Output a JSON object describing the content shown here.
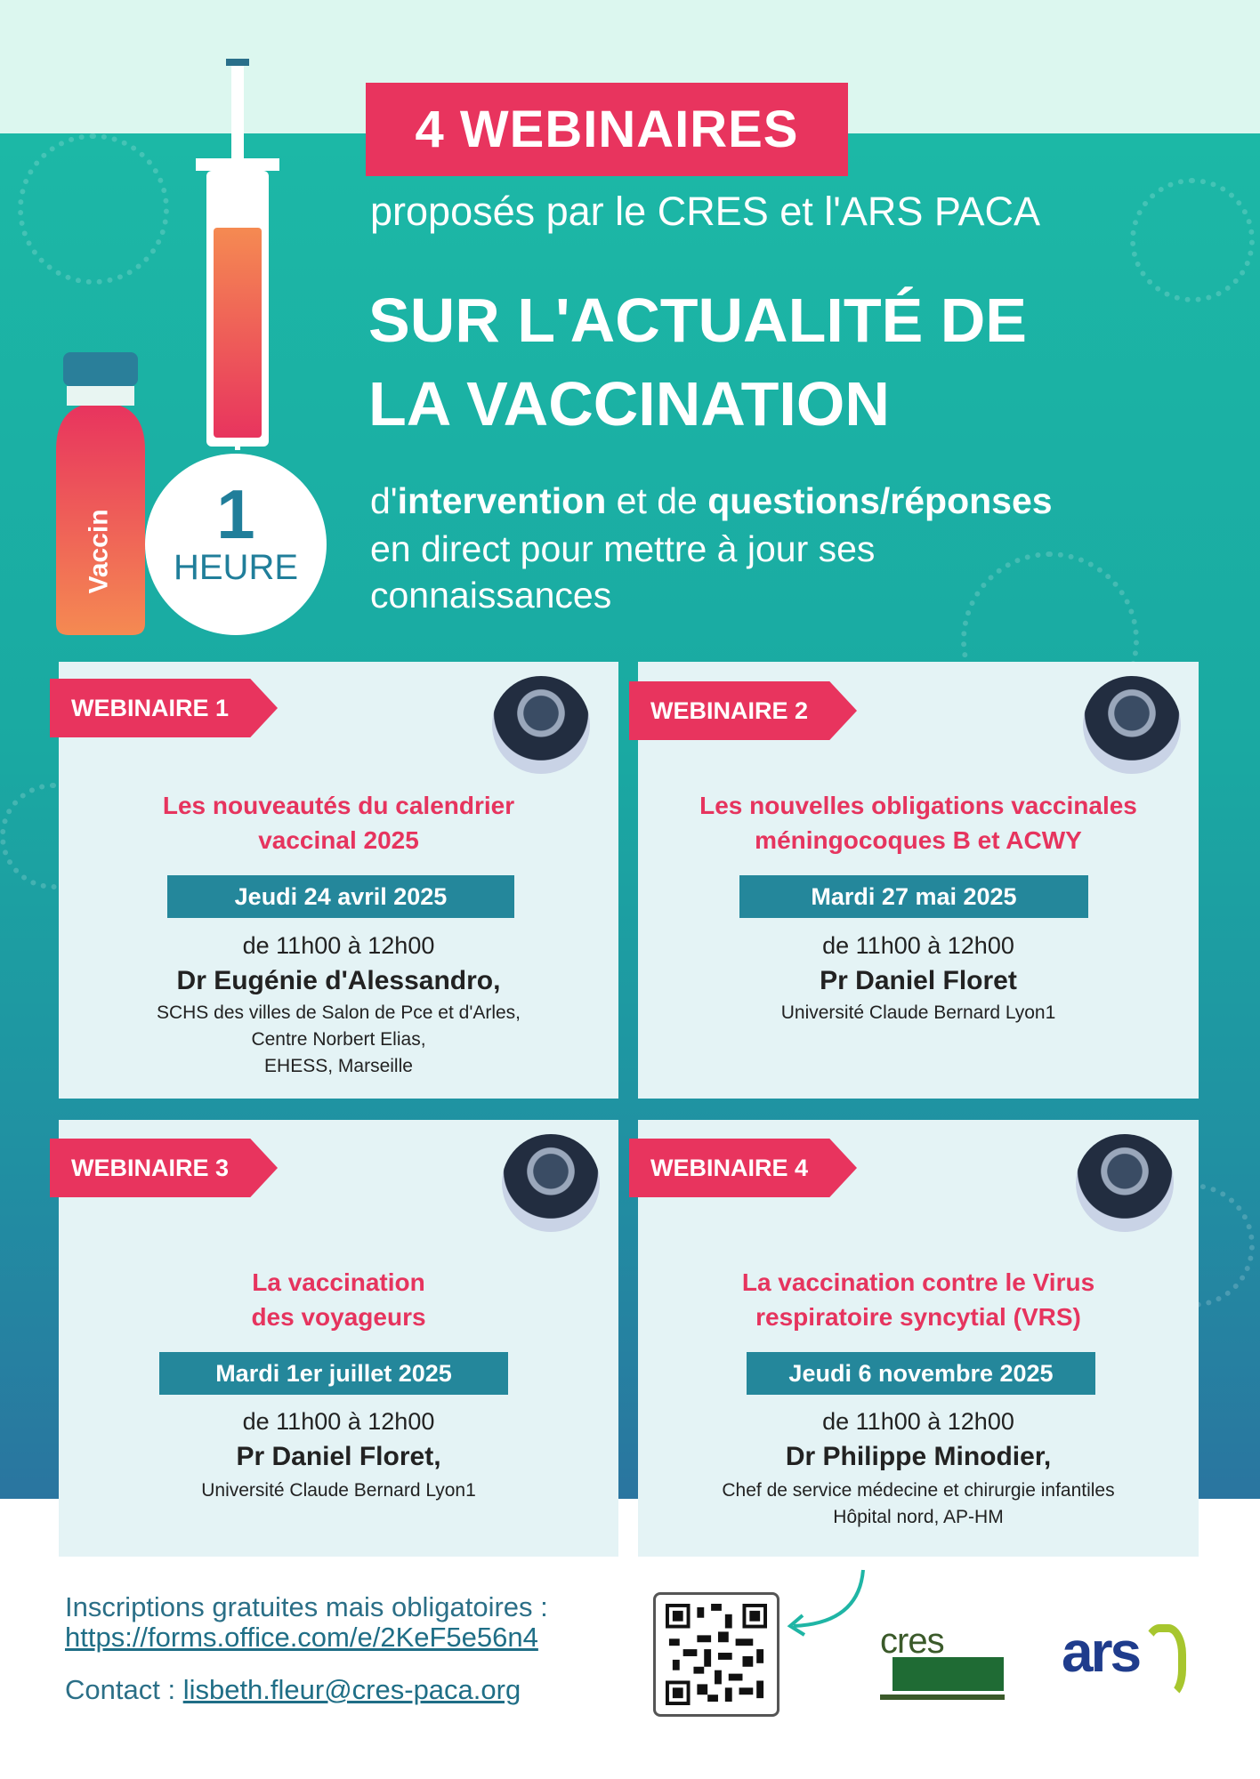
{
  "colors": {
    "accent": "#e8345e",
    "teal": "#1cb8a6",
    "date_bar": "#24879b",
    "card_bg": "#e4f3f5"
  },
  "header": {
    "badge": "4 WEBINAIRES",
    "by": "proposés par le CRES et l'ARS PACA",
    "title_line1": "SUR L'ACTUALITÉ DE",
    "title_line2": "LA VACCINATION",
    "sub1_a": "d'",
    "sub1_b": "intervention",
    "sub1_c": " et de ",
    "sub1_d": "questions/réponses",
    "sub2": "en direct pour mettre à jour ses",
    "sub3": "connaissances",
    "vial_label": "Vaccin",
    "duration_number": "1",
    "duration_unit": "HEURE"
  },
  "webinars": [
    {
      "ribbon": "WEBINAIRE 1",
      "title1": "Les nouveautés du calendrier",
      "title2": "vaccinal 2025",
      "date": "Jeudi 24 avril 2025",
      "time": "de 11h00 à 12h00",
      "speaker": "Dr Eugénie d'Alessandro,",
      "aff1": "SCHS des villes de Salon de Pce et d'Arles,",
      "aff2": "Centre Norbert Elias,",
      "aff3": "EHESS, Marseille"
    },
    {
      "ribbon": "WEBINAIRE 2",
      "title1": "Les nouvelles obligations vaccinales",
      "title2": "méningocoques B et ACWY",
      "date": "Mardi 27 mai 2025",
      "time": "de 11h00 à 12h00",
      "speaker": "Pr Daniel Floret",
      "aff1": "Université Claude Bernard Lyon1",
      "aff2": "",
      "aff3": ""
    },
    {
      "ribbon": "WEBINAIRE 3",
      "title1": "La vaccination",
      "title2": "des voyageurs",
      "date": "Mardi 1er juillet 2025",
      "time": "de 11h00 à 12h00",
      "speaker": "Pr Daniel Floret,",
      "aff1": "Université Claude Bernard Lyon1",
      "aff2": "",
      "aff3": ""
    },
    {
      "ribbon": "WEBINAIRE 4",
      "title1": "La vaccination contre le Virus",
      "title2": "respiratoire syncytial (VRS)",
      "date": "Jeudi 6 novembre 2025",
      "time": "de 11h00 à 12h00",
      "speaker": "Dr Philippe Minodier,",
      "aff1": "Chef de service médecine et chirurgie infantiles",
      "aff2": "Hôpital nord, AP-HM",
      "aff3": ""
    }
  ],
  "footer": {
    "registration_label": "Inscriptions gratuites mais obligatoires :",
    "registration_url": "https://forms.office.com/e/2KeF5e56n4",
    "contact_label": "Contact : ",
    "contact_email": "lisbeth.fleur@cres-paca.org",
    "logo_cres": "cres",
    "logo_ars": "ars"
  }
}
